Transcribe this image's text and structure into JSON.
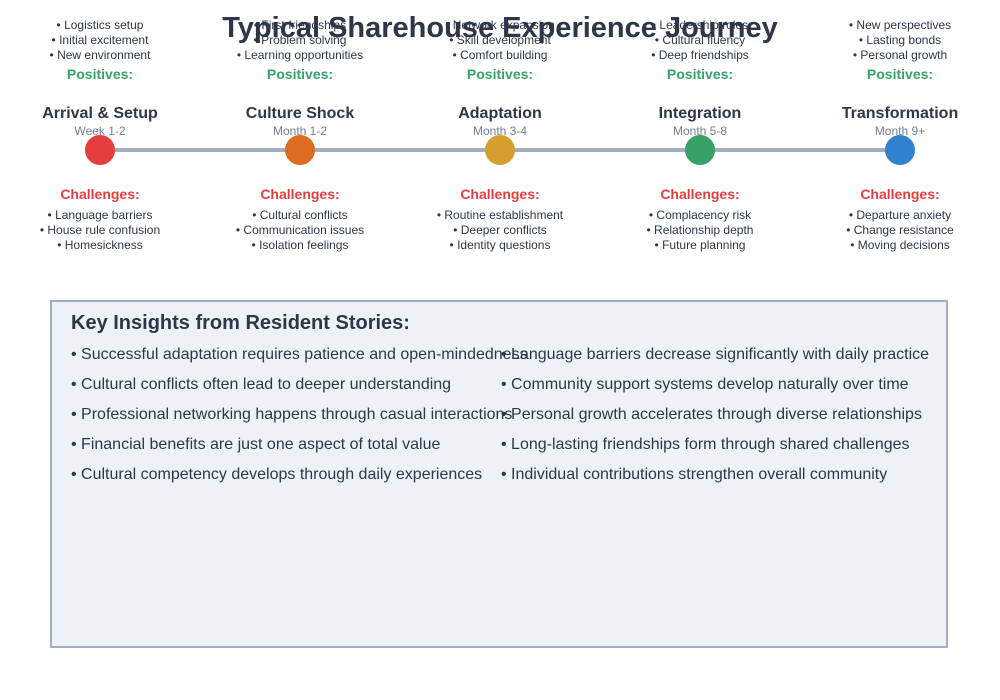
{
  "title": "Typical Sharehouse Experience Journey",
  "positives_label": "Positives:",
  "challenges_label": "Challenges:",
  "colors": {
    "positive": "#38a169",
    "challenge": "#e53e3e",
    "line": "#a0aec0",
    "panel_bg": "#edf2f7"
  },
  "stages": [
    {
      "name": "Arrival & Setup",
      "time": "Week 1-2",
      "color": "#e53e3e",
      "positives": [
        "• Logistics setup",
        "• Initial excitement",
        "• New environment"
      ],
      "challenges": [
        "• Language barriers",
        "• House rule confusion",
        "• Homesickness"
      ]
    },
    {
      "name": "Culture Shock",
      "time": "Month 1-2",
      "color": "#dd6b20",
      "positives": [
        "• First friendships",
        "• Problem solving",
        "• Learning opportunities"
      ],
      "challenges": [
        "• Cultural conflicts",
        "• Communication issues",
        "• Isolation feelings"
      ]
    },
    {
      "name": "Adaptation",
      "time": "Month 3-4",
      "color": "#d69e2e",
      "positives": [
        "• Network expansion",
        "• Skill development",
        "• Comfort building"
      ],
      "challenges": [
        "• Routine establishment",
        "• Deeper conflicts",
        "• Identity questions"
      ]
    },
    {
      "name": "Integration",
      "time": "Month 5-8",
      "color": "#38a169",
      "positives": [
        "• Leadership roles",
        "• Cultural fluency",
        "• Deep friendships"
      ],
      "challenges": [
        "• Complacency risk",
        "• Relationship depth",
        "• Future planning"
      ]
    },
    {
      "name": "Transformation",
      "time": "Month 9+",
      "color": "#3182ce",
      "positives": [
        "• New perspectives",
        "• Lasting bonds",
        "• Personal growth"
      ],
      "challenges": [
        "• Departure anxiety",
        "• Change resistance",
        "• Moving decisions"
      ]
    }
  ],
  "insights": {
    "title": "Key Insights from Resident Stories:",
    "left": [
      "• Successful adaptation requires patience and open-mindedness",
      "• Cultural conflicts often lead to deeper understanding",
      "• Professional networking happens through casual interactions",
      "• Financial benefits are just one aspect of total value",
      "• Cultural competency develops through daily experiences"
    ],
    "right": [
      "• Language barriers decrease significantly with daily practice",
      "• Community support systems develop naturally over time",
      "• Personal growth accelerates through diverse relationships",
      "• Long-lasting friendships form through shared challenges",
      "• Individual contributions strengthen overall community"
    ]
  }
}
